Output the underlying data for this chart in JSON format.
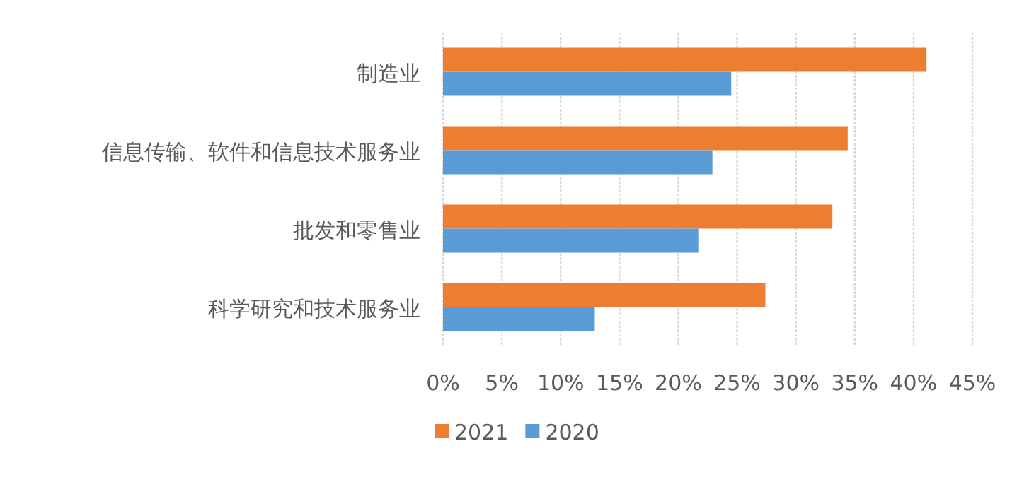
{
  "chart_data": {
    "type": "bar",
    "orientation": "horizontal",
    "categories": [
      "制造业",
      "信息传输、软件和信息技术服务业",
      "批发和零售业",
      "科学研究和技术服务业"
    ],
    "series": [
      {
        "name": "2021",
        "color": "#ed7d31",
        "values": [
          41.1,
          34.4,
          33.1,
          27.4
        ]
      },
      {
        "name": "2020",
        "color": "#5b9bd5",
        "values": [
          24.5,
          22.9,
          21.7,
          12.9
        ]
      }
    ],
    "xlim": [
      0,
      45
    ],
    "xticks": [
      {
        "value": 0,
        "label": "0%"
      },
      {
        "value": 5,
        "label": "5%"
      },
      {
        "value": 10,
        "label": "10%"
      },
      {
        "value": 15,
        "label": "15%"
      },
      {
        "value": 20,
        "label": "20%"
      },
      {
        "value": 25,
        "label": "25%"
      },
      {
        "value": 30,
        "label": "30%"
      },
      {
        "value": 35,
        "label": "35%"
      },
      {
        "value": 40,
        "label": "40%"
      },
      {
        "value": 45,
        "label": "45%"
      }
    ],
    "grid": "x",
    "legend": "bottom"
  }
}
